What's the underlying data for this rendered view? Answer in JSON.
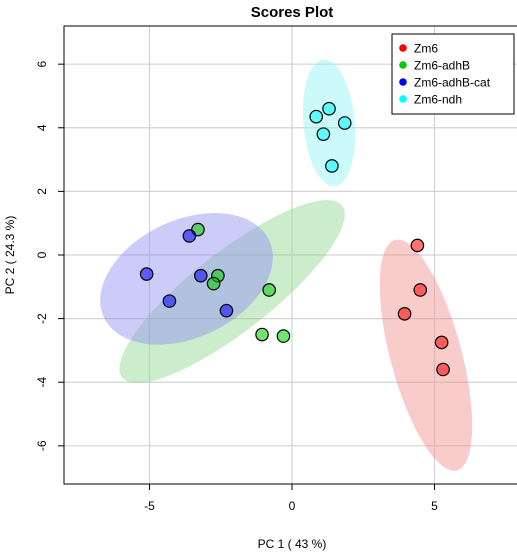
{
  "chart_data": {
    "type": "scatter",
    "title": "Scores Plot",
    "xlabel": "PC 1 ( 43 %)",
    "ylabel": "PC 2 ( 24.3 %)",
    "xlim": [
      -8,
      8
    ],
    "ylim": [
      -7.2,
      7.2
    ],
    "xticks": [
      -5,
      0,
      5
    ],
    "yticks": [
      -6,
      -4,
      -2,
      0,
      2,
      4,
      6
    ],
    "grid": true,
    "legend": "top-right",
    "series": [
      {
        "name": "Zm6",
        "color": "#ff0000",
        "fill": "#f28e8e",
        "points": [
          [
            4.4,
            0.3
          ],
          [
            4.5,
            -1.1
          ],
          [
            3.95,
            -1.85
          ],
          [
            5.25,
            -2.75
          ],
          [
            5.3,
            -3.6
          ]
        ],
        "ellipse": {
          "cx": 4.7,
          "cy": -3.15,
          "rx": 1.25,
          "ry": 3.75,
          "angle": -15
        }
      },
      {
        "name": "Zm6-adhB",
        "color": "#00cc00",
        "fill": "#8ed88e",
        "points": [
          [
            -3.3,
            0.8
          ],
          [
            -2.6,
            -0.65
          ],
          [
            -2.75,
            -0.9
          ],
          [
            -0.8,
            -1.1
          ],
          [
            -1.05,
            -2.5
          ],
          [
            -0.3,
            -2.55
          ]
        ],
        "ellipse": {
          "cx": -2.1,
          "cy": -1.15,
          "rx": 4.9,
          "ry": 1.25,
          "angle": -38
        }
      },
      {
        "name": "Zm6-adhB-cat",
        "color": "#0000ff",
        "fill": "#8e8ef2",
        "points": [
          [
            -3.6,
            0.6
          ],
          [
            -5.1,
            -0.6
          ],
          [
            -3.2,
            -0.65
          ],
          [
            -4.3,
            -1.45
          ],
          [
            -2.3,
            -1.75
          ]
        ],
        "ellipse": {
          "cx": -3.7,
          "cy": -0.75,
          "rx": 3.2,
          "ry": 1.85,
          "angle": -25
        }
      },
      {
        "name": "Zm6-ndh",
        "color": "#00ffff",
        "fill": "#8ef2f2",
        "points": [
          [
            1.3,
            4.6
          ],
          [
            0.85,
            4.35
          ],
          [
            1.85,
            4.15
          ],
          [
            1.1,
            3.8
          ],
          [
            1.4,
            2.8
          ]
        ],
        "ellipse": {
          "cx": 1.3,
          "cy": 4.15,
          "rx": 0.9,
          "ry": 2.0,
          "angle": -5
        }
      }
    ]
  }
}
